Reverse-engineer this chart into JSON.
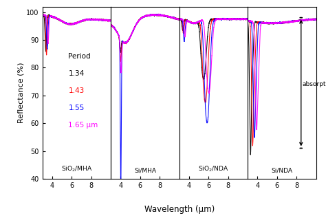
{
  "panels": [
    "SiO$_2$/MHA",
    "Si/MHA",
    "SiO$_2$/NDA",
    "Si/NDA"
  ],
  "colors": [
    "black",
    "red",
    "blue",
    "magenta"
  ],
  "period_labels": [
    "1.34",
    "1.43",
    "1.55",
    "1.65 μm"
  ],
  "period_colors": [
    "black",
    "red",
    "blue",
    "magenta"
  ],
  "ylabel": "Reflectance (%)",
  "xlabel": "Wavelength (μm)",
  "ylim": [
    40,
    102
  ],
  "xlim": [
    3,
    10
  ],
  "yticks": [
    40,
    50,
    60,
    70,
    80,
    90,
    100
  ],
  "xticks": [
    4,
    6,
    8
  ],
  "background_color": "#ffffff"
}
